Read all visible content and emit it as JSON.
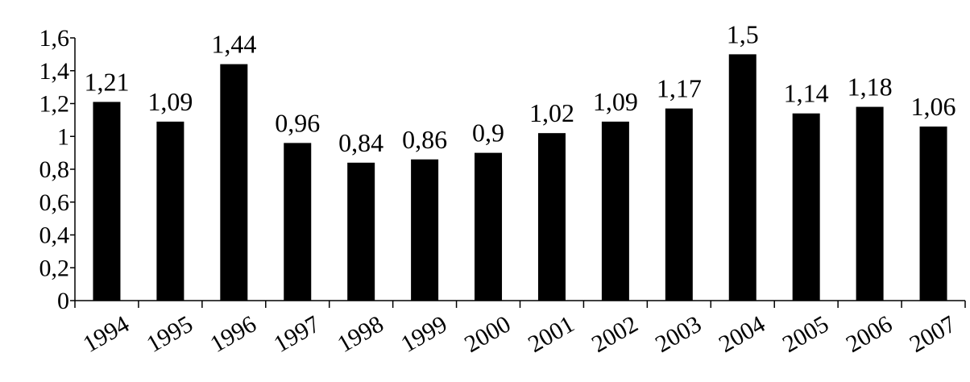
{
  "chart_data": {
    "type": "bar",
    "categories": [
      "1994",
      "1995",
      "1996",
      "1997",
      "1998",
      "1999",
      "2000",
      "2001",
      "2002",
      "2003",
      "2004",
      "2005",
      "2006",
      "2007"
    ],
    "values": [
      1.21,
      1.09,
      1.44,
      0.96,
      0.84,
      0.86,
      0.9,
      1.02,
      1.09,
      1.17,
      1.5,
      1.14,
      1.18,
      1.06
    ],
    "value_labels": [
      "1,21",
      "1,09",
      "1,44",
      "0,96",
      "0,84",
      "0,86",
      "0,9",
      "1,02",
      "1,09",
      "1,17",
      "1,5",
      "1,14",
      "1,18",
      "1,06"
    ],
    "y_ticks": [
      0,
      0.2,
      0.4,
      0.6,
      0.8,
      1,
      1.2,
      1.4,
      1.6
    ],
    "y_tick_labels": [
      "0",
      "0,2",
      "0,4",
      "0,6",
      "0,8",
      "1",
      "1,2",
      "1,4",
      "1,6"
    ],
    "ylim": [
      0,
      1.6
    ],
    "grid": false,
    "bar_color": "#000000",
    "title": "",
    "xlabel": "",
    "ylabel": ""
  }
}
